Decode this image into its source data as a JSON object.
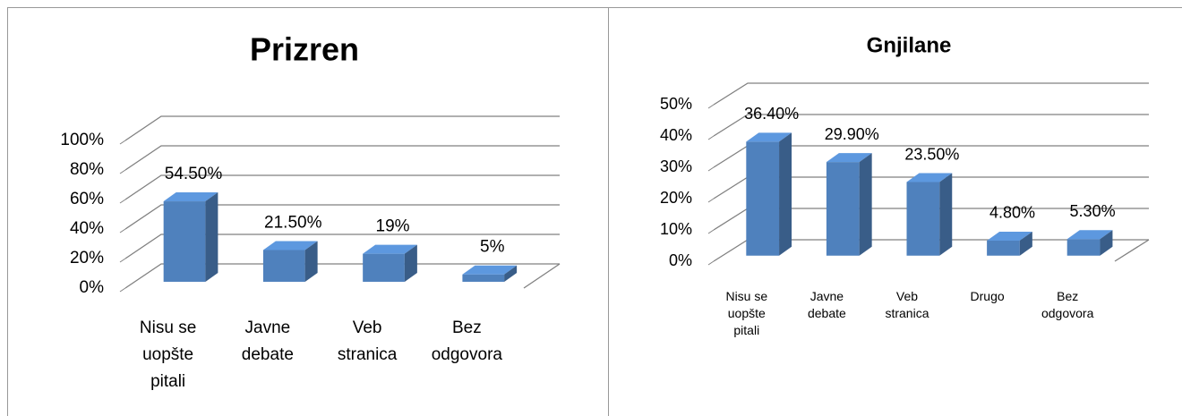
{
  "chart_data": [
    {
      "type": "bar3d",
      "title": "Prizren",
      "categories": [
        "Nisu se uopšte pitali",
        "Javne debate",
        "Veb stranica",
        "Bez odgovora"
      ],
      "values": [
        54.5,
        21.5,
        19,
        5
      ],
      "value_labels": [
        "54.50%",
        "21.50%",
        "19%",
        "5%"
      ],
      "color": "#4f81bd",
      "ylim": [
        0,
        100
      ],
      "yticks": [
        {
          "value": 0,
          "label": "0%"
        },
        {
          "value": 20,
          "label": "20%"
        },
        {
          "value": 40,
          "label": "40%"
        },
        {
          "value": 60,
          "label": "60%"
        },
        {
          "value": 80,
          "label": "80%"
        },
        {
          "value": 100,
          "label": "100%"
        }
      ],
      "grid": true
    },
    {
      "type": "bar3d",
      "title": "Gnjilane",
      "categories": [
        "Nisu se uopšte pitali",
        "Javne debate",
        "Veb stranica",
        "Drugo",
        "Bez odgovora"
      ],
      "values": [
        36.4,
        29.9,
        23.5,
        4.8,
        5.3
      ],
      "value_labels": [
        "36.40%",
        "29.90%",
        "23.50%",
        "4.80%",
        "5.30%"
      ],
      "color": "#4f81bd",
      "ylim": [
        0,
        50
      ],
      "yticks": [
        {
          "value": 0,
          "label": "0%"
        },
        {
          "value": 10,
          "label": "10%"
        },
        {
          "value": 20,
          "label": "20%"
        },
        {
          "value": 30,
          "label": "30%"
        },
        {
          "value": 40,
          "label": "40%"
        },
        {
          "value": 50,
          "label": "50%"
        }
      ],
      "grid": true
    }
  ]
}
